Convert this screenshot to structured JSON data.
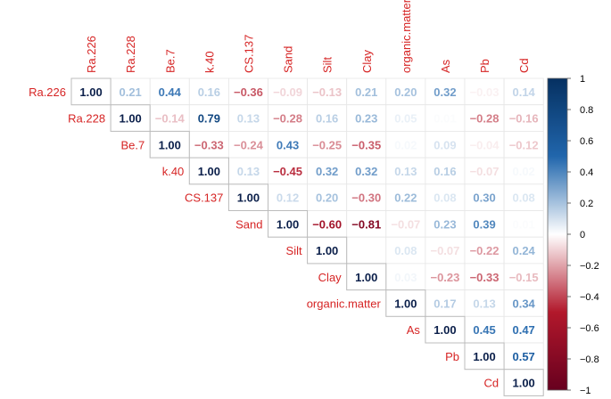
{
  "chart_data": {
    "type": "heatmap",
    "subtype": "upper-triangular correlation matrix",
    "title": "",
    "variables": [
      "Ra.226",
      "Ra.228",
      "Be.7",
      "k.40",
      "CS.137",
      "Sand",
      "Silt",
      "Clay",
      "organic.matter",
      "As",
      "Pb",
      "Cd"
    ],
    "matrix": [
      [
        1.0,
        0.21,
        0.44,
        0.16,
        -0.36,
        -0.09,
        -0.13,
        0.21,
        0.2,
        0.32,
        -0.03,
        0.14
      ],
      [
        null,
        1.0,
        -0.14,
        0.79,
        0.13,
        -0.28,
        0.16,
        0.23,
        0.05,
        0.01,
        -0.28,
        -0.16
      ],
      [
        null,
        null,
        1.0,
        -0.33,
        -0.24,
        0.43,
        -0.25,
        -0.35,
        0.02,
        0.09,
        -0.04,
        -0.12
      ],
      [
        null,
        null,
        null,
        1.0,
        0.13,
        -0.45,
        0.32,
        0.32,
        0.13,
        0.16,
        -0.07,
        0.02
      ],
      [
        null,
        null,
        null,
        null,
        1.0,
        0.12,
        0.2,
        -0.3,
        0.22,
        0.08,
        0.3,
        0.08
      ],
      [
        null,
        null,
        null,
        null,
        null,
        1.0,
        -0.6,
        -0.81,
        -0.07,
        0.23,
        0.39,
        0.01
      ],
      [
        null,
        null,
        null,
        null,
        null,
        null,
        1.0,
        0.0,
        0.08,
        -0.07,
        -0.22,
        0.24
      ],
      [
        null,
        null,
        null,
        null,
        null,
        null,
        null,
        1.0,
        0.03,
        -0.23,
        -0.33,
        -0.15
      ],
      [
        null,
        null,
        null,
        null,
        null,
        null,
        null,
        null,
        1.0,
        0.17,
        0.13,
        0.34
      ],
      [
        null,
        null,
        null,
        null,
        null,
        null,
        null,
        null,
        null,
        1.0,
        0.45,
        0.47
      ],
      [
        null,
        null,
        null,
        null,
        null,
        null,
        null,
        null,
        null,
        null,
        1.0,
        0.57
      ],
      [
        null,
        null,
        null,
        null,
        null,
        null,
        null,
        null,
        null,
        null,
        null,
        1.0
      ]
    ],
    "value_range": [
      -1,
      1
    ],
    "colorbar": {
      "ticks": [
        1,
        0.8,
        0.6,
        0.4,
        0.2,
        0,
        -0.2,
        -0.4,
        -0.6,
        -0.8,
        -1
      ],
      "tick_labels": [
        "1",
        "0.8",
        "0.6",
        "0.4",
        "0.2",
        "0",
        "−0.2",
        "−0.4",
        "−0.6",
        "−0.8",
        "−1"
      ],
      "placement": "right"
    },
    "colors": {
      "negative": "#67001f",
      "zero": "#ffffff",
      "positive": "#053061",
      "label": "#d62424"
    },
    "grid": true
  }
}
